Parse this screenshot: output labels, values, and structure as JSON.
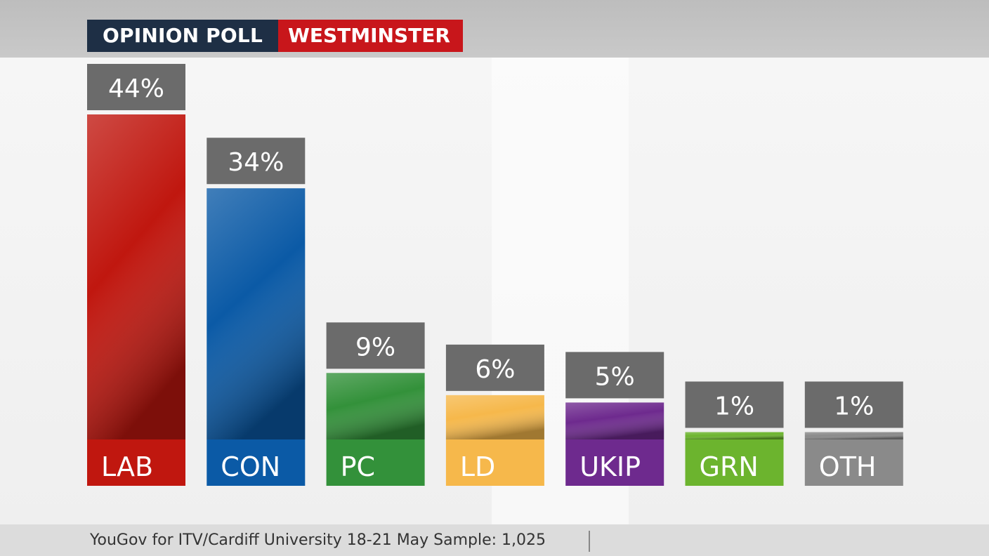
{
  "header": {
    "label": "OPINION POLL",
    "region": "WESTMINSTER"
  },
  "footer": {
    "source": "YouGov for ITV/Cardiff University 18-21 May Sample: 1,025"
  },
  "chart_data": {
    "type": "bar",
    "title": "",
    "xlabel": "",
    "ylabel": "",
    "ylim": [
      0,
      44
    ],
    "grid": false,
    "legend": "none",
    "categories": [
      "LAB",
      "CON",
      "PC",
      "LD",
      "UKIP",
      "GRN",
      "OTH"
    ],
    "values": [
      44,
      34,
      9,
      6,
      5,
      1,
      1
    ],
    "value_labels": [
      "44%",
      "34%",
      "9%",
      "6%",
      "5%",
      "1%",
      "1%"
    ],
    "colors": [
      "#c0170f",
      "#0b5aa6",
      "#33913a",
      "#f6b84b",
      "#6e2a8e",
      "#6cb42e",
      "#8a8a8a"
    ]
  }
}
